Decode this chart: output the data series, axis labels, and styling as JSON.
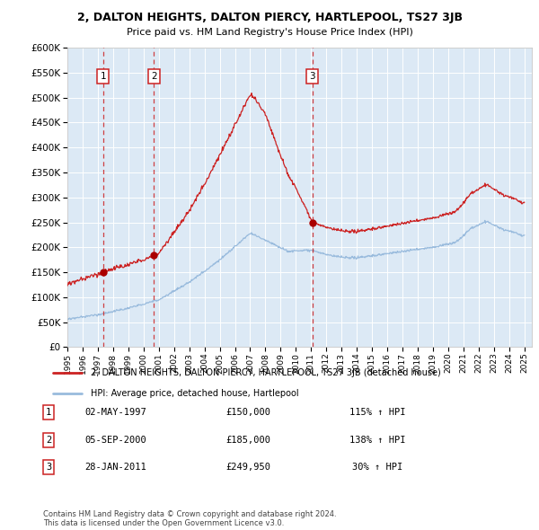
{
  "title": "2, DALTON HEIGHTS, DALTON PIERCY, HARTLEPOOL, TS27 3JB",
  "subtitle": "Price paid vs. HM Land Registry's House Price Index (HPI)",
  "ytick_values": [
    0,
    50000,
    100000,
    150000,
    200000,
    250000,
    300000,
    350000,
    400000,
    450000,
    500000,
    550000,
    600000
  ],
  "xlim_start": 1995.0,
  "xlim_end": 2025.5,
  "ylim_min": 0,
  "ylim_max": 600000,
  "background_color": "#dce9f5",
  "grid_color": "#ffffff",
  "hpi_line_color": "#99bbdd",
  "price_line_color": "#cc2222",
  "marker_color": "#aa0000",
  "sale_points": [
    {
      "date_decimal": 1997.34,
      "price": 150000,
      "label": "1"
    },
    {
      "date_decimal": 2000.68,
      "price": 185000,
      "label": "2"
    },
    {
      "date_decimal": 2011.07,
      "price": 249950,
      "label": "3"
    }
  ],
  "legend_entry1": "2, DALTON HEIGHTS, DALTON PIERCY, HARTLEPOOL, TS27 3JB (detached house)",
  "legend_entry2": "HPI: Average price, detached house, Hartlepool",
  "table_rows": [
    {
      "num": "1",
      "date": "02-MAY-1997",
      "price": "£150,000",
      "hpi": "115% ↑ HPI"
    },
    {
      "num": "2",
      "date": "05-SEP-2000",
      "price": "£185,000",
      "hpi": "138% ↑ HPI"
    },
    {
      "num": "3",
      "date": "28-JAN-2011",
      "price": "£249,950",
      "hpi": "30% ↑ HPI"
    }
  ],
  "footer": "Contains HM Land Registry data © Crown copyright and database right 2024.\nThis data is licensed under the Open Government Licence v3.0.",
  "xticks": [
    1995,
    1996,
    1997,
    1998,
    1999,
    2000,
    2001,
    2002,
    2003,
    2004,
    2005,
    2006,
    2007,
    2008,
    2009,
    2010,
    2011,
    2012,
    2013,
    2014,
    2015,
    2016,
    2017,
    2018,
    2019,
    2020,
    2021,
    2022,
    2023,
    2024,
    2025
  ]
}
